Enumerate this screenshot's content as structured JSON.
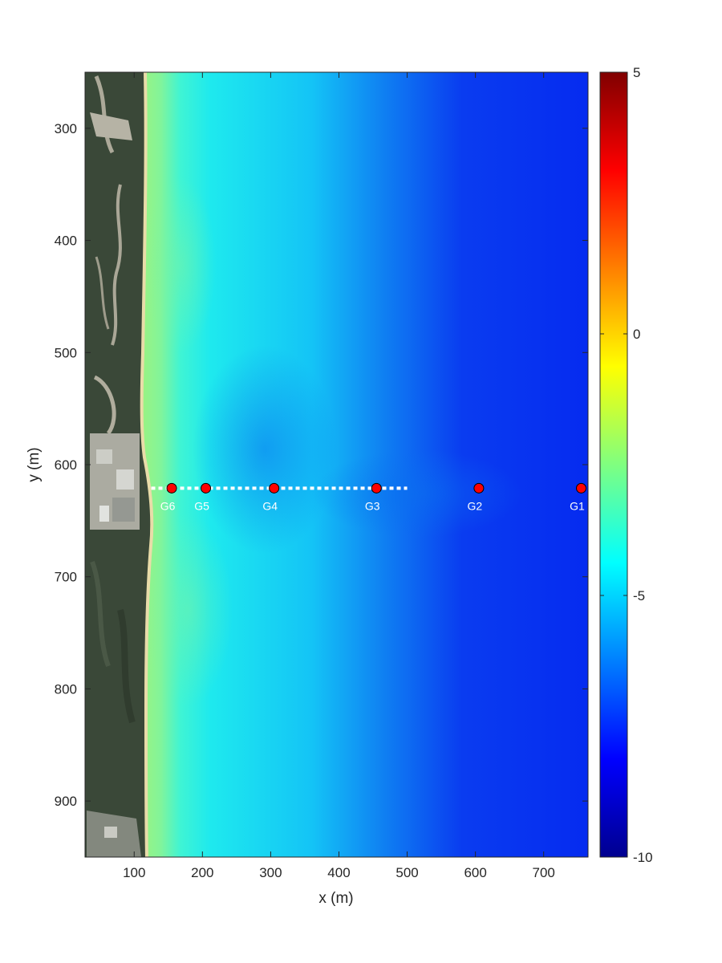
{
  "chart_data": {
    "type": "heatmap",
    "title": "",
    "xlabel": "x (m)",
    "ylabel": "y (m)",
    "xlim": [
      28,
      765
    ],
    "ylim": [
      250,
      950
    ],
    "y_reversed": true,
    "xticks": [
      100,
      200,
      300,
      400,
      500,
      600,
      700
    ],
    "yticks": [
      300,
      400,
      500,
      600,
      700,
      800,
      900
    ],
    "colormap": "jet",
    "colorbar": {
      "clim": [
        -10,
        5
      ],
      "ticks": [
        5,
        0,
        -5,
        -10
      ]
    },
    "background": "aerial photograph of coastline with vegetation and buildings",
    "shoreline_x_approx": 125,
    "depth_profile_cross_shore": [
      {
        "x": 125,
        "value": 0.0
      },
      {
        "x": 150,
        "value": -1.3
      },
      {
        "x": 200,
        "value": -2.2
      },
      {
        "x": 260,
        "value": -3.5
      },
      {
        "x": 300,
        "value": -4.8
      },
      {
        "x": 400,
        "value": -5.6
      },
      {
        "x": 500,
        "value": -7.0
      },
      {
        "x": 600,
        "value": -8.3
      },
      {
        "x": 765,
        "value": -8.6
      }
    ],
    "transect": {
      "style": "white dotted line",
      "x_start": 125,
      "x_end": 500,
      "y": 621
    },
    "gauges": [
      {
        "label": "G1",
        "x": 755,
        "y": 621
      },
      {
        "label": "G2",
        "x": 605,
        "y": 621
      },
      {
        "label": "G3",
        "x": 455,
        "y": 621
      },
      {
        "label": "G4",
        "x": 305,
        "y": 621
      },
      {
        "label": "G5",
        "x": 205,
        "y": 621
      },
      {
        "label": "G6",
        "x": 155,
        "y": 621
      }
    ],
    "marker_color": "#ff0000"
  }
}
